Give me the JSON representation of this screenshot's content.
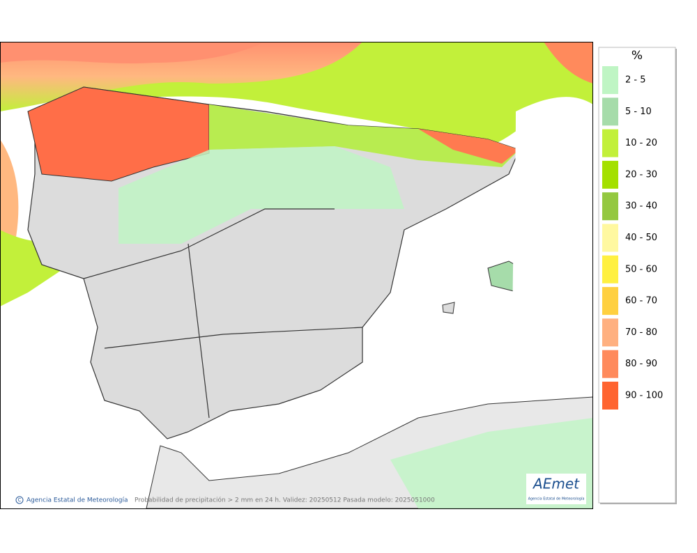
{
  "legend": {
    "unit": "%",
    "items": [
      {
        "label": "2 - 5",
        "color": "#bff5c4"
      },
      {
        "label": "5 - 10",
        "color": "#a6dcaa"
      },
      {
        "label": "10 - 20",
        "color": "#c2f03a"
      },
      {
        "label": "20 - 30",
        "color": "#a4e000"
      },
      {
        "label": "30 - 40",
        "color": "#94c840"
      },
      {
        "label": "40 - 50",
        "color": "#fff8a0"
      },
      {
        "label": "50 - 60",
        "color": "#fff040"
      },
      {
        "label": "60 - 70",
        "color": "#ffd040"
      },
      {
        "label": "70 - 80",
        "color": "#ffb080"
      },
      {
        "label": "80 - 90",
        "color": "#ff8a5c"
      },
      {
        "label": "90 - 100",
        "color": "#ff6430"
      }
    ]
  },
  "footer": {
    "credit": "Agencia Estatal de Meteorología",
    "caption": "Probabilidad de precipitación > 2 mm en 24 h. Validez: 20250512 Pasada modelo: 2025051000"
  },
  "logo": {
    "name": "AEmet",
    "subtitle": "Agencia Estatal de Meteorología"
  }
}
